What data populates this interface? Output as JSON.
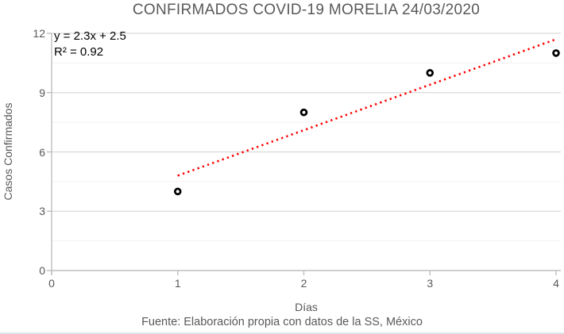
{
  "header": {
    "title": "CONFIRMADOS COVID-19 MORELIA 24/03/2020"
  },
  "annotation": {
    "equation": "y = 2.3x + 2.5",
    "r_squared": "R² = 0.92"
  },
  "chart_data": {
    "type": "scatter",
    "title": "CONFIRMADOS COVID-19 MORELIA 24/03/2020",
    "xlabel": "Días",
    "ylabel": "Casos Confirmados",
    "x": [
      1,
      2,
      3,
      4
    ],
    "y": [
      4,
      8,
      10,
      11
    ],
    "xlim": [
      0,
      4
    ],
    "ylim": [
      0,
      12
    ],
    "x_ticks": [
      0,
      1,
      2,
      3,
      4
    ],
    "y_ticks": [
      0,
      3,
      6,
      9,
      12
    ],
    "y_major_gridlines": [
      3,
      6,
      9,
      12
    ],
    "y_minor_gridlines": [
      1.5,
      4.5,
      7.5,
      10.5
    ],
    "grid": true,
    "legend": false,
    "marker": {
      "shape": "circle-open",
      "color": "#000000",
      "fill": "#ffffff"
    },
    "trendline": {
      "slope": 2.3,
      "intercept": 2.5,
      "x_start": 1.0,
      "x_end": 3.99,
      "equation_label": "y = 2.3x + 2.5",
      "r2_label": "R² = 0.92",
      "style": "dotted"
    }
  },
  "footer": {
    "source": "Fuente: Elaboración propia con datos de la SS, México"
  },
  "colors": {
    "title_text": "#595959",
    "axis_text": "#595959",
    "axis_line": "#bfbfbf",
    "major_grid": "#d9d9d9",
    "minor_grid": "#f2f2f2",
    "trend": "#ff0000",
    "marker_stroke": "#000000",
    "annotation_text": "#000000"
  }
}
